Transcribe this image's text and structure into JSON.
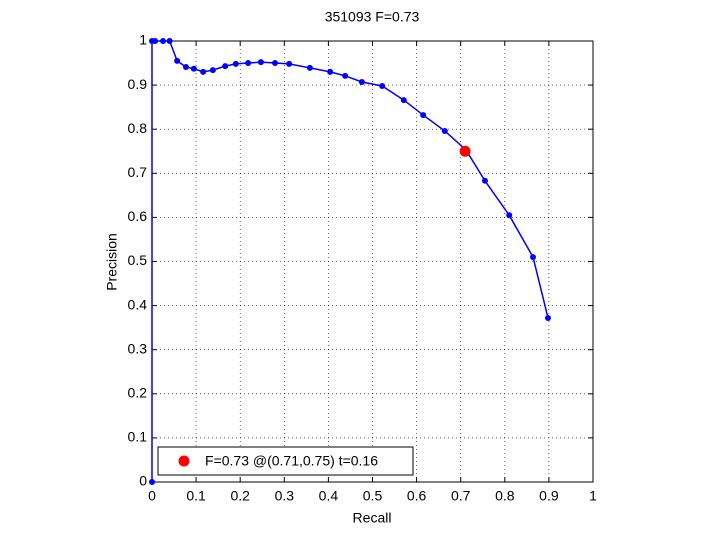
{
  "chart_data": {
    "type": "line",
    "title": "351093 F=0.73",
    "x_label": "Recall",
    "y_label": "Precision",
    "xlim": [
      0,
      1
    ],
    "ylim": [
      0,
      1
    ],
    "xticks": [
      0,
      0.1,
      0.2,
      0.3,
      0.4,
      0.5,
      0.6,
      0.7,
      0.8,
      0.9,
      1
    ],
    "yticks": [
      0,
      0.1,
      0.2,
      0.3,
      0.4,
      0.5,
      0.6,
      0.7,
      0.8,
      0.9,
      1
    ],
    "grid": true,
    "legend": "lower-left",
    "series": [
      {
        "color": "#0000ff",
        "x": [
          0,
          0,
          0.007,
          0.025,
          0.04,
          0.057,
          0.077,
          0.095,
          0.116,
          0.138,
          0.166,
          0.19,
          0.218,
          0.247,
          0.279,
          0.311,
          0.358,
          0.404,
          0.438,
          0.476,
          0.522,
          0.571,
          0.615,
          0.664,
          0.712,
          0.755,
          0.81,
          0.864,
          0.898
        ],
        "values": [
          0,
          1,
          1,
          1,
          1,
          0.955,
          0.941,
          0.937,
          0.93,
          0.934,
          0.943,
          0.948,
          0.95,
          0.952,
          0.95,
          0.948,
          0.939,
          0.93,
          0.921,
          0.907,
          0.898,
          0.866,
          0.832,
          0.796,
          0.753,
          0.683,
          0.605,
          0.51,
          0.372
        ]
      },
      {
        "name": "F=0.73 @(0.71,0.75) t=0.16",
        "color": "#ff0000",
        "x": [
          0.71
        ],
        "values": [
          0.75
        ]
      }
    ]
  }
}
